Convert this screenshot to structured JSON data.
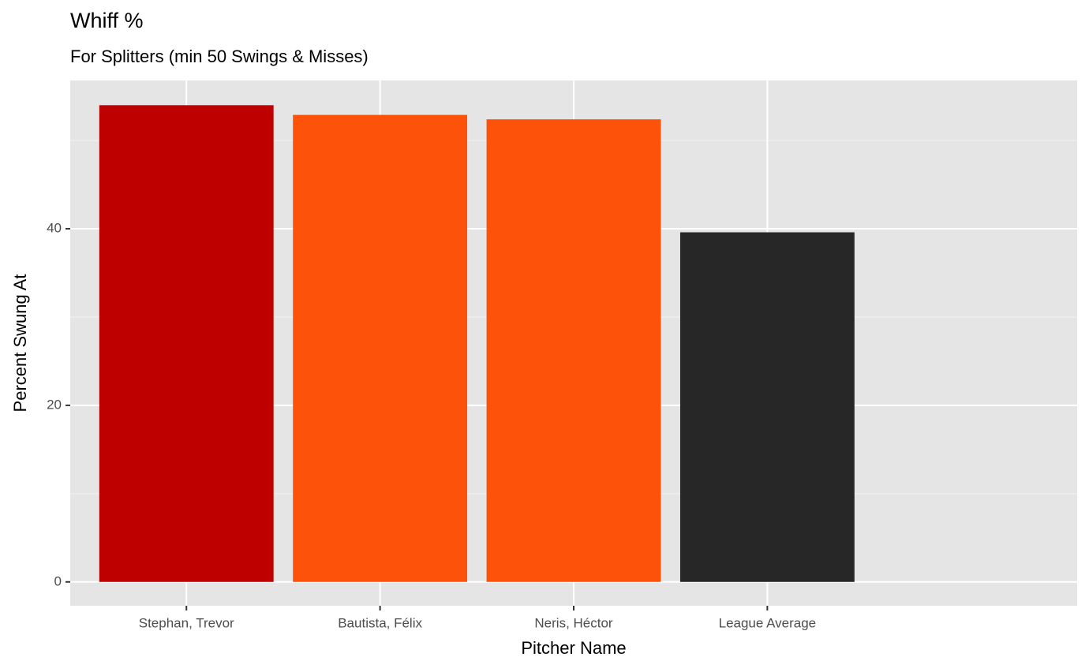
{
  "chart_data": {
    "type": "bar",
    "title": "Whiff %",
    "subtitle": "For Splitters (min 50 Swings & Misses)",
    "x_label": "Pitcher Name",
    "y_label": "Percent Swung At",
    "categories": [
      "Stephan, Trevor",
      "Bautista, Félix",
      "Neris, Héctor",
      "League Average"
    ],
    "values": [
      54.0,
      52.9,
      52.4,
      39.6
    ],
    "colors": [
      "#bf0000",
      "#fc520a",
      "#fc520a",
      "#272727"
    ],
    "ylim": [
      -2.7,
      56.8
    ],
    "yticks": [
      0,
      20,
      40
    ],
    "minor_yticks": [
      10,
      30,
      50
    ],
    "grid": true
  }
}
